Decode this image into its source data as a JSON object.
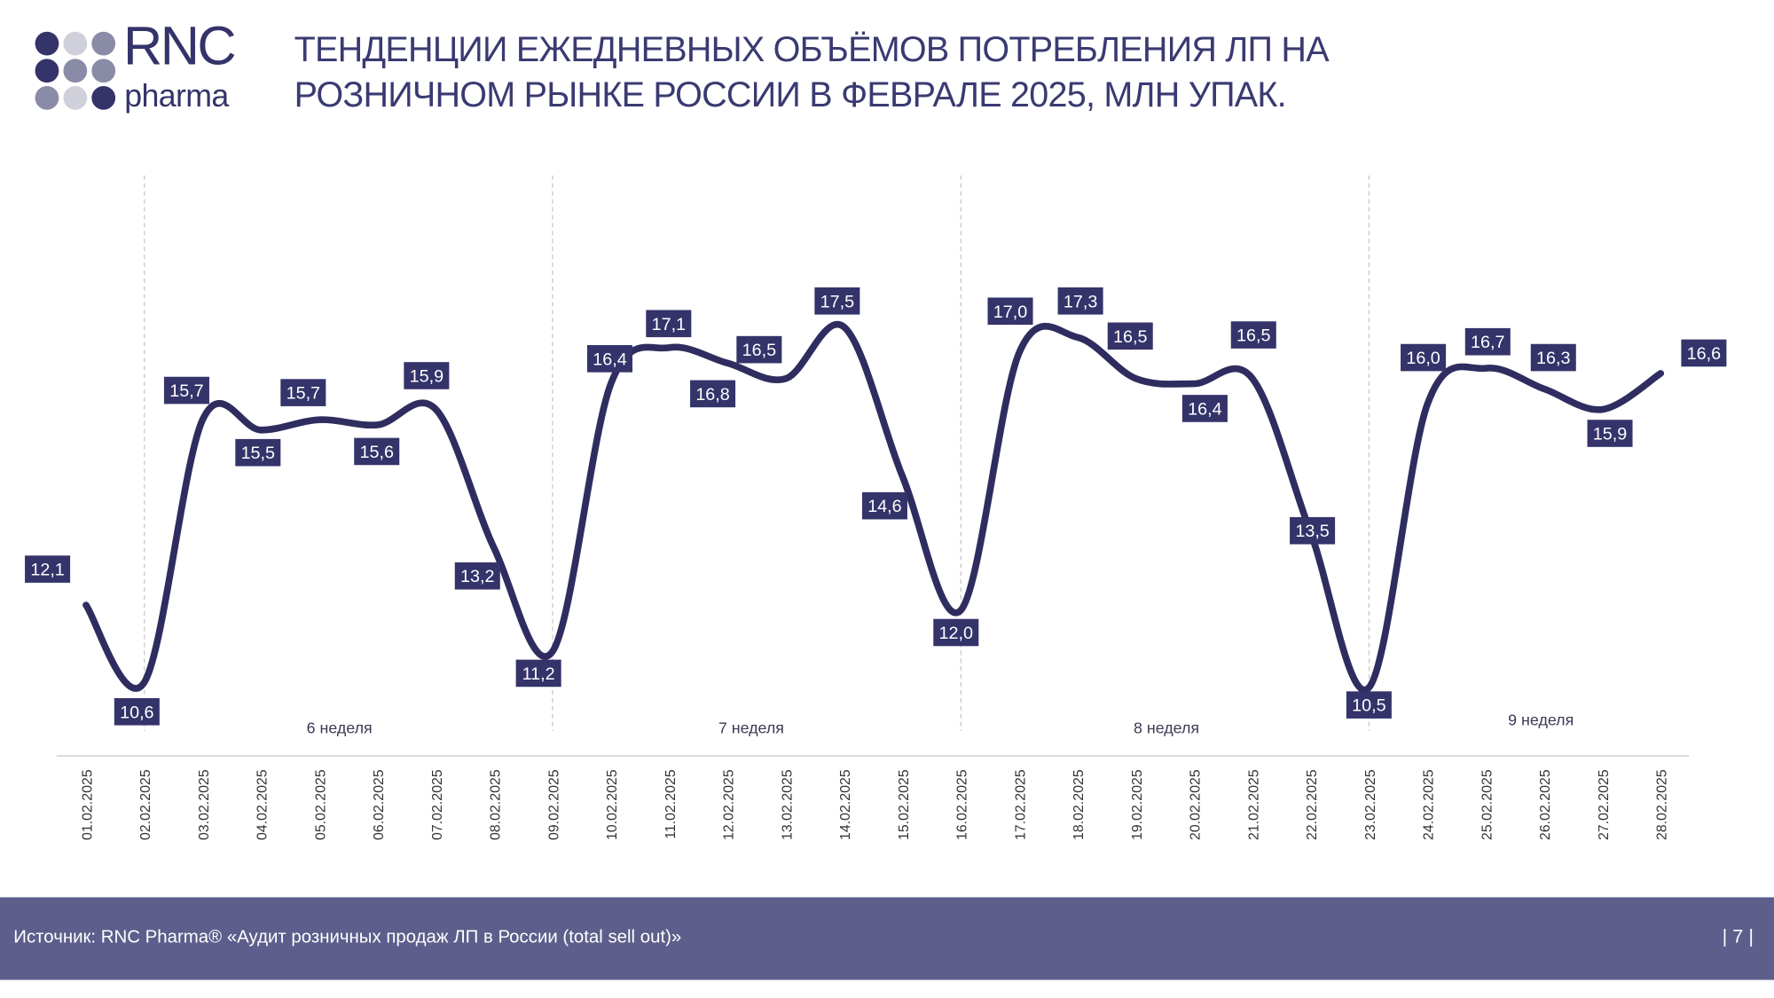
{
  "header": {
    "logo_text": "RNC pharma",
    "title_line1": "ТЕНДЕНЦИИ ЕЖЕДНЕВНЫХ ОБЪЁМОВ ПОТРЕБЛЕНИЯ ЛП НА",
    "title_line2": "РОЗНИЧНОМ РЫНКЕ РОССИИ В ФЕВРАЛЕ 2025, МЛН УПАК."
  },
  "chart_data": {
    "type": "line",
    "title": "ТЕНДЕНЦИИ ЕЖЕДНЕВНЫХ ОБЪЁМОВ ПОТРЕБЛЕНИЯ ЛП НА РОЗНИЧНОМ РЫНКЕ РОССИИ В ФЕВРАЛЕ 2025, МЛН УПАК.",
    "categories": [
      "01.02.2025",
      "02.02.2025",
      "03.02.2025",
      "04.02.2025",
      "05.02.2025",
      "06.02.2025",
      "07.02.2025",
      "08.02.2025",
      "09.02.2025",
      "10.02.2025",
      "11.02.2025",
      "12.02.2025",
      "13.02.2025",
      "14.02.2025",
      "15.02.2025",
      "16.02.2025",
      "17.02.2025",
      "18.02.2025",
      "19.02.2025",
      "20.02.2025",
      "21.02.2025",
      "22.02.2025",
      "23.02.2025",
      "24.02.2025",
      "25.02.2025",
      "26.02.2025",
      "27.02.2025",
      "28.02.2025"
    ],
    "values": [
      12.1,
      10.6,
      15.7,
      15.5,
      15.7,
      15.6,
      15.9,
      13.2,
      11.2,
      16.4,
      17.1,
      16.8,
      16.5,
      17.5,
      14.6,
      12.0,
      17.0,
      17.3,
      16.5,
      16.4,
      16.5,
      13.5,
      10.5,
      16.0,
      16.7,
      16.3,
      15.9,
      16.6
    ],
    "data_labels": [
      "12,1",
      "10,6",
      "15,7",
      "15,5",
      "15,7",
      "15,6",
      "15,9",
      "13,2",
      "11,2",
      "16,4",
      "17,1",
      "16,8",
      "16,5",
      "17,5",
      "14,6",
      "12,0",
      "17,0",
      "17,3",
      "16,5",
      "16,4",
      "16,5",
      "13,5",
      "10,5",
      "16,0",
      "16,7",
      "16,3",
      "15,9",
      "16,6"
    ],
    "week_labels": [
      "6 неделя",
      "7 неделя",
      "8 неделя",
      "9 неделя"
    ],
    "week_dividers_after": [
      "02.02.2025",
      "09.02.2025",
      "16.02.2025",
      "23.02.2025"
    ],
    "grid": false,
    "line_color": "#2f2d5f",
    "label_bg": "#34336a"
  },
  "footer": {
    "source": "Источник: RNC Pharma® «Аудит розничных продаж ЛП в России (total sell out)»",
    "page": "| 7 |"
  }
}
